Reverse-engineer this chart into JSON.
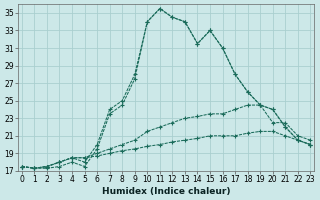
{
  "xlabel": "Humidex (Indice chaleur)",
  "background_color": "#cce8e8",
  "line_color": "#1a6b5a",
  "grid_color": "#b0d8d8",
  "xlim_min": -0.3,
  "xlim_max": 23.3,
  "ylim_min": 17,
  "ylim_max": 36,
  "yticks": [
    17,
    19,
    21,
    23,
    25,
    27,
    29,
    31,
    33,
    35
  ],
  "xticks": [
    0,
    1,
    2,
    3,
    4,
    5,
    6,
    7,
    8,
    9,
    10,
    11,
    12,
    13,
    14,
    15,
    16,
    17,
    18,
    19,
    20,
    21,
    22,
    23
  ],
  "line1": [
    17.5,
    17.3,
    17.3,
    17.5,
    18.0,
    17.5,
    19.5,
    23.5,
    24.5,
    27.5,
    34.0,
    35.5,
    34.5,
    34.0,
    31.5,
    33.0,
    31.0,
    28.0,
    26.0,
    24.5,
    24.0,
    22.0,
    20.5,
    20.0
  ],
  "line2": [
    17.5,
    17.3,
    17.5,
    18.0,
    18.5,
    18.0,
    20.0,
    24.0,
    25.0,
    28.0,
    34.0,
    35.5,
    34.5,
    34.0,
    31.5,
    33.0,
    31.0,
    28.0,
    26.0,
    24.5,
    24.0,
    22.0,
    20.5,
    20.0
  ],
  "line3": [
    17.5,
    17.3,
    17.5,
    18.0,
    18.5,
    18.5,
    19.0,
    19.5,
    20.0,
    20.5,
    21.5,
    22.0,
    22.5,
    23.0,
    23.2,
    23.5,
    23.5,
    24.0,
    24.5,
    24.5,
    22.5,
    22.5,
    21.0,
    20.5
  ],
  "line4": [
    17.5,
    17.3,
    17.5,
    18.0,
    18.5,
    18.5,
    18.7,
    19.0,
    19.3,
    19.5,
    19.8,
    20.0,
    20.3,
    20.5,
    20.7,
    21.0,
    21.0,
    21.0,
    21.3,
    21.5,
    21.5,
    21.0,
    20.5,
    20.0
  ],
  "xlabel_fontsize": 6.5,
  "tick_fontsize": 5.5
}
